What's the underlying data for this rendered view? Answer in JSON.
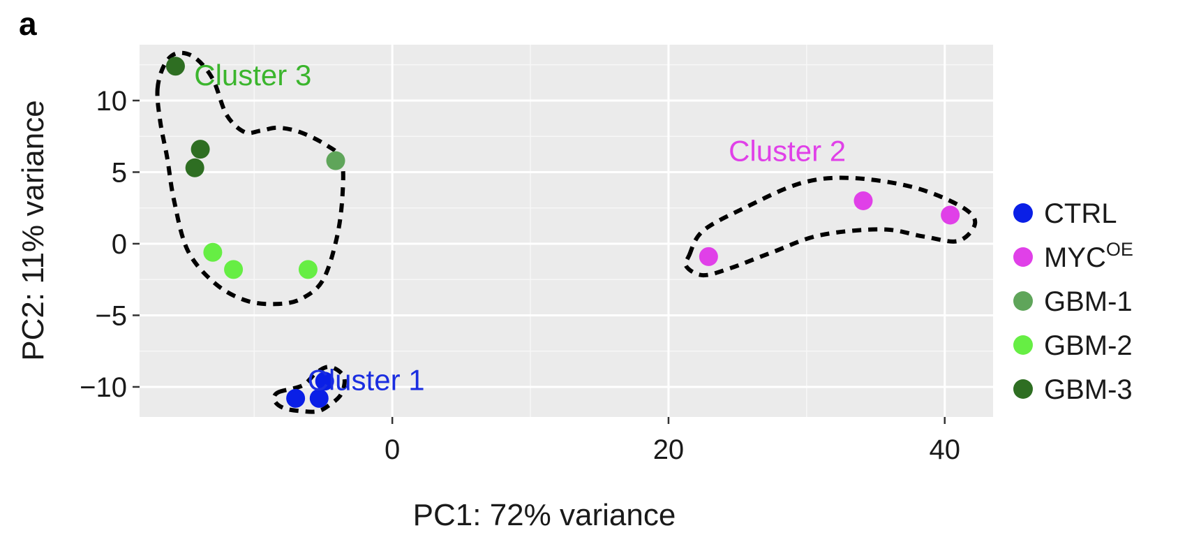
{
  "chart_data": {
    "type": "scatter",
    "panel_label": "a",
    "xlabel": "PC1: 72% variance",
    "ylabel": "PC2: 11% variance",
    "xlim": [
      -18.3,
      43.5
    ],
    "ylim": [
      -12.1,
      13.9
    ],
    "xticks": [
      0,
      20,
      40
    ],
    "yticks": [
      10,
      5,
      0,
      -5,
      -10
    ],
    "x_tick_labels": [
      "0",
      "20",
      "40"
    ],
    "y_tick_labels": [
      "10",
      "5",
      "0",
      "−5",
      "−10"
    ],
    "grid": true,
    "legend_position": "right",
    "series": [
      {
        "name": "CTRL",
        "color": "#0a1fe6",
        "points": [
          {
            "x": -7.0,
            "y": -10.8
          },
          {
            "x": -5.3,
            "y": -10.8
          },
          {
            "x": -4.9,
            "y": -9.6
          }
        ]
      },
      {
        "name": "MYC",
        "name_superscript": "OE",
        "color": "#e040e8",
        "points": [
          {
            "x": 22.9,
            "y": -0.9
          },
          {
            "x": 34.1,
            "y": 3.0
          },
          {
            "x": 40.4,
            "y": 2.0
          }
        ]
      },
      {
        "name": "GBM-1",
        "color": "#5fa55a",
        "points": [
          {
            "x": -4.1,
            "y": 5.8
          }
        ]
      },
      {
        "name": "GBM-2",
        "color": "#66ee44",
        "points": [
          {
            "x": -13.0,
            "y": -0.6
          },
          {
            "x": -11.5,
            "y": -1.8
          },
          {
            "x": -6.1,
            "y": -1.8
          }
        ]
      },
      {
        "name": "GBM-3",
        "color": "#2e6e22",
        "points": [
          {
            "x": -15.7,
            "y": 12.4
          },
          {
            "x": -13.9,
            "y": 6.6
          },
          {
            "x": -14.3,
            "y": 5.3
          }
        ]
      }
    ],
    "clusters": [
      {
        "label": "Cluster 1",
        "color": "#1b2ee0",
        "outline": [
          [
            -8.3,
            -10.4
          ],
          [
            -6.5,
            -9.9
          ],
          [
            -5.5,
            -9.0
          ],
          [
            -4.5,
            -8.6
          ],
          [
            -3.5,
            -9.3
          ],
          [
            -3.7,
            -10.5
          ],
          [
            -4.6,
            -11.3
          ],
          [
            -5.4,
            -11.7
          ],
          [
            -6.5,
            -11.7
          ],
          [
            -7.8,
            -11.5
          ],
          [
            -8.5,
            -11.0
          ]
        ],
        "label_at": [
          -1.9,
          -9.5
        ]
      },
      {
        "label": "Cluster 2",
        "color": "#e040e8",
        "outline": [
          [
            21.5,
            -0.8
          ],
          [
            22.5,
            0.9
          ],
          [
            25.5,
            2.5
          ],
          [
            29.5,
            4.2
          ],
          [
            33.0,
            4.6
          ],
          [
            37.5,
            4.0
          ],
          [
            41.0,
            2.7
          ],
          [
            42.2,
            1.5
          ],
          [
            41.0,
            0.2
          ],
          [
            38.5,
            0.5
          ],
          [
            35.5,
            1.0
          ],
          [
            31.0,
            0.6
          ],
          [
            27.5,
            -0.6
          ],
          [
            24.5,
            -1.7
          ],
          [
            22.5,
            -2.2
          ],
          [
            21.3,
            -1.6
          ]
        ],
        "label_at": [
          28.6,
          6.5
        ]
      },
      {
        "label": "Cluster 3",
        "color": "#3bb52d",
        "outline": [
          [
            -17.0,
            10.8
          ],
          [
            -16.5,
            12.5
          ],
          [
            -15.6,
            13.3
          ],
          [
            -14.3,
            13.0
          ],
          [
            -13.0,
            11.5
          ],
          [
            -12.0,
            9.0
          ],
          [
            -10.7,
            7.8
          ],
          [
            -9.5,
            7.9
          ],
          [
            -8.3,
            8.1
          ],
          [
            -6.7,
            7.8
          ],
          [
            -4.8,
            6.9
          ],
          [
            -3.7,
            5.9
          ],
          [
            -3.6,
            3.5
          ],
          [
            -4.0,
            0.5
          ],
          [
            -5.0,
            -2.5
          ],
          [
            -6.5,
            -3.8
          ],
          [
            -8.2,
            -4.2
          ],
          [
            -10.5,
            -4.0
          ],
          [
            -12.8,
            -2.8
          ],
          [
            -14.8,
            -0.5
          ],
          [
            -15.8,
            3.0
          ],
          [
            -16.3,
            6.0
          ],
          [
            -16.8,
            8.5
          ]
        ],
        "label_at": [
          -10.1,
          11.8
        ]
      }
    ]
  }
}
